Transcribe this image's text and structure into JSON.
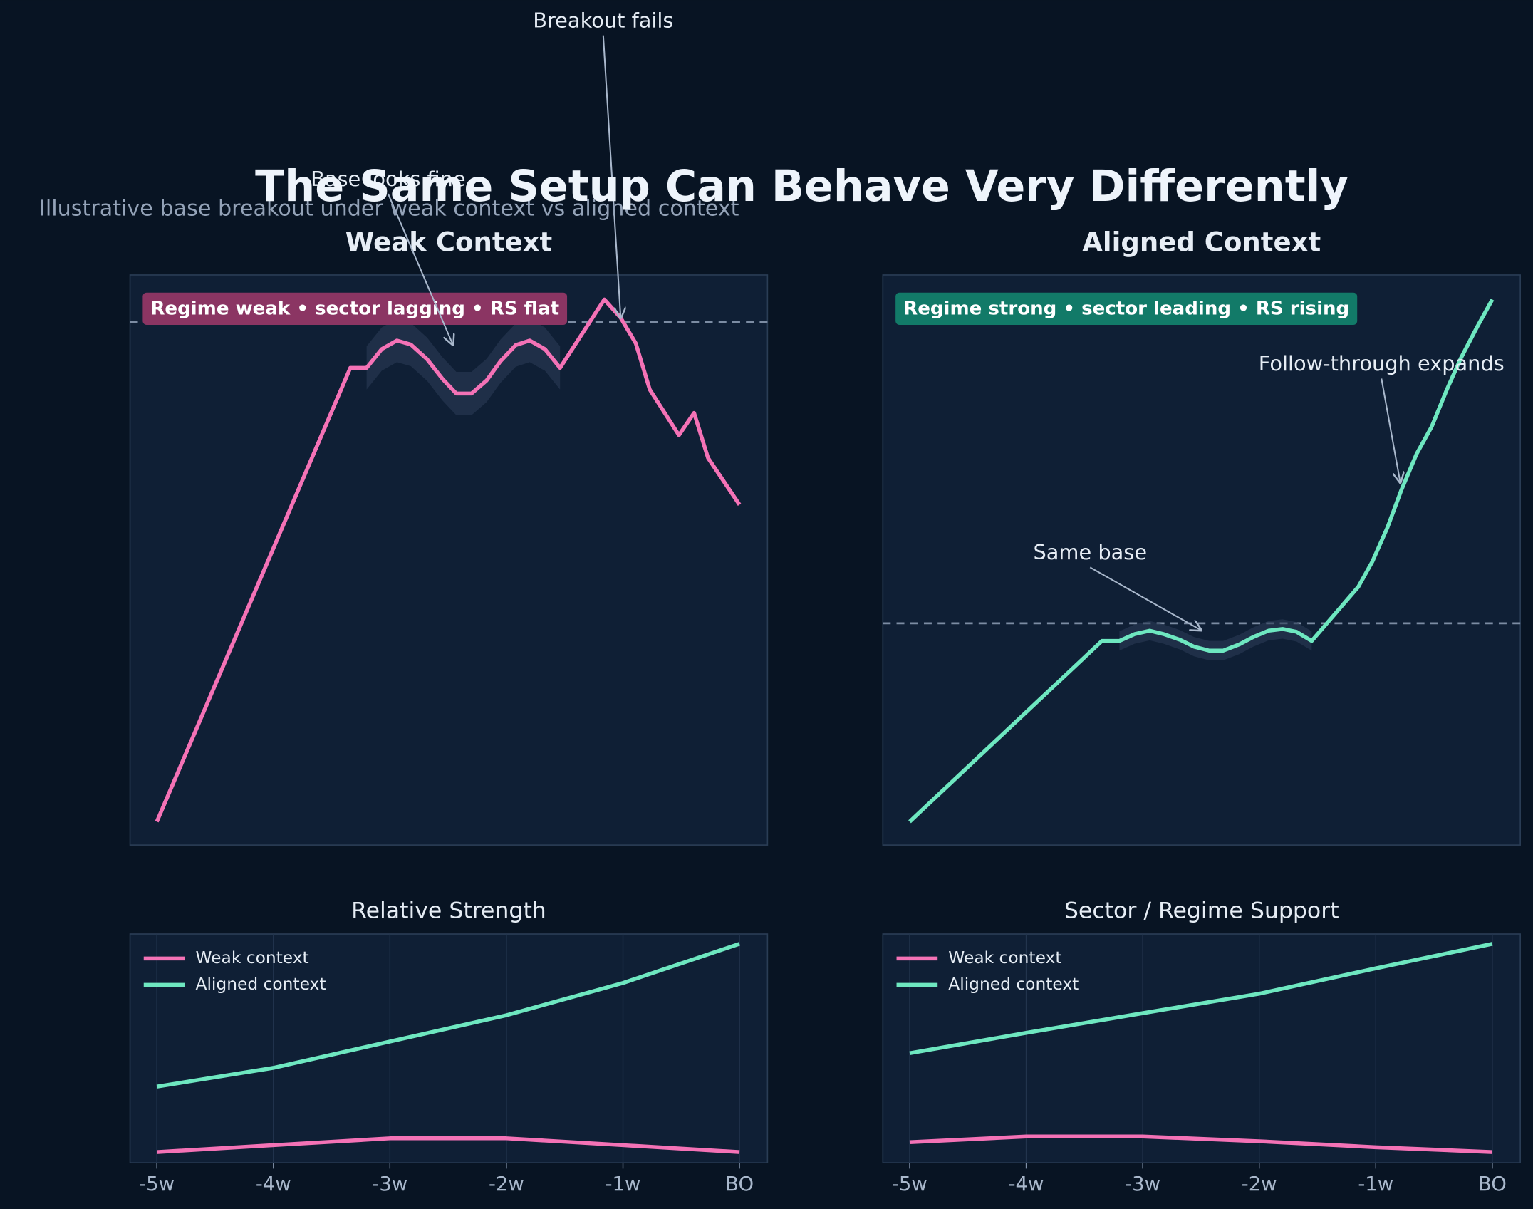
{
  "title": "The Same Setup Can Behave Very Differently",
  "subtitle": "Illustrative base breakout under weak context vs aligned context",
  "chart_data": [
    {
      "type": "line",
      "title": "Weak Context",
      "xlim": [
        -5.23,
        0.24
      ],
      "ylim": [
        0,
        100
      ],
      "badge": {
        "text": "Regime weak • sector lagging • RS flat",
        "color": "#8b3563"
      },
      "hline": 91.8,
      "band": {
        "x": [
          -3.2,
          -3.07,
          -2.94,
          -2.82,
          -2.68,
          -2.55,
          -2.43,
          -2.3,
          -2.17,
          -2.05,
          -1.92,
          -1.8,
          -1.67,
          -1.54
        ],
        "upper": [
          87.5,
          90.8,
          92.3,
          91.6,
          89,
          85.6,
          83,
          83,
          85.3,
          88.7,
          91.5,
          92.3,
          90.8,
          87.5
        ],
        "lower": [
          79.9,
          83.2,
          84.7,
          84,
          81.4,
          78,
          75.4,
          75.4,
          77.7,
          81.1,
          83.9,
          84.7,
          83.2,
          79.9
        ]
      },
      "series": [
        {
          "name": "Weak context",
          "color": "#f472b6",
          "x": [
            -5,
            -3.34,
            -3.2,
            -3.07,
            -2.94,
            -2.82,
            -2.68,
            -2.55,
            -2.43,
            -2.3,
            -2.17,
            -2.05,
            -1.92,
            -1.8,
            -1.67,
            -1.54,
            -1.16,
            -1.02,
            -0.89,
            -0.77,
            -0.52,
            -0.39,
            -0.27,
            0
          ],
          "values": [
            4.1,
            83.7,
            83.7,
            87,
            88.5,
            87.8,
            85.2,
            81.8,
            79.2,
            79.2,
            81.5,
            84.9,
            87.7,
            88.5,
            87,
            83.7,
            95.7,
            92.5,
            88,
            79.9,
            71.9,
            75.8,
            67.9,
            59.7
          ]
        }
      ],
      "annotations": [
        {
          "text": "Base looks fine",
          "x": -2.46,
          "y": 87.8
        },
        {
          "text": "Breakout fails",
          "x": -1.02,
          "y": 92.5
        }
      ]
    },
    {
      "type": "line",
      "title": "Aligned Context",
      "xlim": [
        -5.23,
        0.24
      ],
      "ylim": [
        0,
        100
      ],
      "badge": {
        "text": "Regime strong • sector leading • RS rising",
        "color": "#127a68"
      },
      "hline": 38.9,
      "band": {
        "x": [
          -3.2,
          -3.07,
          -2.94,
          -2.82,
          -2.68,
          -2.56,
          -2.43,
          -2.31,
          -2.17,
          -2.05,
          -1.92,
          -1.8,
          -1.68,
          -1.55
        ],
        "upper": [
          37.5,
          38.7,
          39.3,
          38.7,
          37.7,
          36.5,
          35.8,
          35.8,
          36.9,
          38.2,
          39.3,
          39.6,
          39.1,
          37.5
        ],
        "lower": [
          34.1,
          35.3,
          35.9,
          35.3,
          34.3,
          33.1,
          32.4,
          32.4,
          33.5,
          34.8,
          35.9,
          36.2,
          35.7,
          34.1
        ]
      },
      "series": [
        {
          "name": "Aligned context",
          "color": "#6ee7c0",
          "x": [
            -5,
            -3.35,
            -3.2,
            -3.07,
            -2.94,
            -2.82,
            -2.68,
            -2.56,
            -2.43,
            -2.31,
            -2.17,
            -2.05,
            -1.92,
            -1.8,
            -1.68,
            -1.55,
            -1.15,
            -1.03,
            -0.9,
            -0.78,
            -0.65,
            -0.52,
            -0.39,
            -0.27,
            -0.13,
            0
          ],
          "values": [
            4.1,
            35.8,
            35.8,
            37,
            37.6,
            37,
            36,
            34.8,
            34.1,
            34.1,
            35.2,
            36.5,
            37.6,
            37.9,
            37.4,
            35.8,
            45.3,
            49.7,
            55.7,
            62.3,
            68.6,
            73.4,
            79.9,
            85.4,
            90.9,
            95.7
          ]
        }
      ],
      "annotations": [
        {
          "text": "Same base",
          "x": -2.5,
          "y": 37.7
        },
        {
          "text": "Follow-through expands",
          "x": -0.79,
          "y": 63.6
        }
      ]
    },
    {
      "type": "line",
      "title": "Relative Strength",
      "xlim": [
        -5.23,
        0.24
      ],
      "ylim": [
        0,
        100
      ],
      "grid": true,
      "legend": "upper left",
      "xticks": [
        {
          "value": -5,
          "label": "-5w"
        },
        {
          "value": -4,
          "label": "-4w"
        },
        {
          "value": -3,
          "label": "-3w"
        },
        {
          "value": -2,
          "label": "-2w"
        },
        {
          "value": -1,
          "label": "-1w"
        },
        {
          "value": 0,
          "label": "BO"
        }
      ],
      "series": [
        {
          "name": "Weak context",
          "color": "#f472b6",
          "x": [
            -5,
            -4,
            -3,
            -2,
            -1,
            0
          ],
          "values": [
            4.7,
            7.7,
            10.7,
            10.7,
            7.7,
            4.7
          ]
        },
        {
          "name": "Aligned context",
          "color": "#6ee7c0",
          "x": [
            -5,
            -4,
            -3,
            -2,
            -1,
            0
          ],
          "values": [
            33.3,
            41.5,
            53,
            64.5,
            78.6,
            95.7
          ]
        }
      ]
    },
    {
      "type": "line",
      "title": "Sector / Regime Support",
      "xlim": [
        -5.23,
        0.24
      ],
      "ylim": [
        0,
        100
      ],
      "grid": true,
      "legend": "upper left",
      "xticks": [
        {
          "value": -5,
          "label": "-5w"
        },
        {
          "value": -4,
          "label": "-4w"
        },
        {
          "value": -3,
          "label": "-3w"
        },
        {
          "value": -2,
          "label": "-2w"
        },
        {
          "value": -1,
          "label": "-1w"
        },
        {
          "value": 0,
          "label": "BO"
        }
      ],
      "series": [
        {
          "name": "Weak context",
          "color": "#f472b6",
          "x": [
            -5,
            -4,
            -3,
            -2,
            -1,
            0
          ],
          "values": [
            9,
            11.5,
            11.5,
            9.4,
            6.8,
            4.7
          ]
        },
        {
          "name": "Aligned context",
          "color": "#6ee7c0",
          "x": [
            -5,
            -4,
            -3,
            -2,
            -1,
            0
          ],
          "values": [
            47.9,
            56.8,
            65.4,
            73.9,
            85,
            95.7
          ]
        }
      ]
    }
  ]
}
